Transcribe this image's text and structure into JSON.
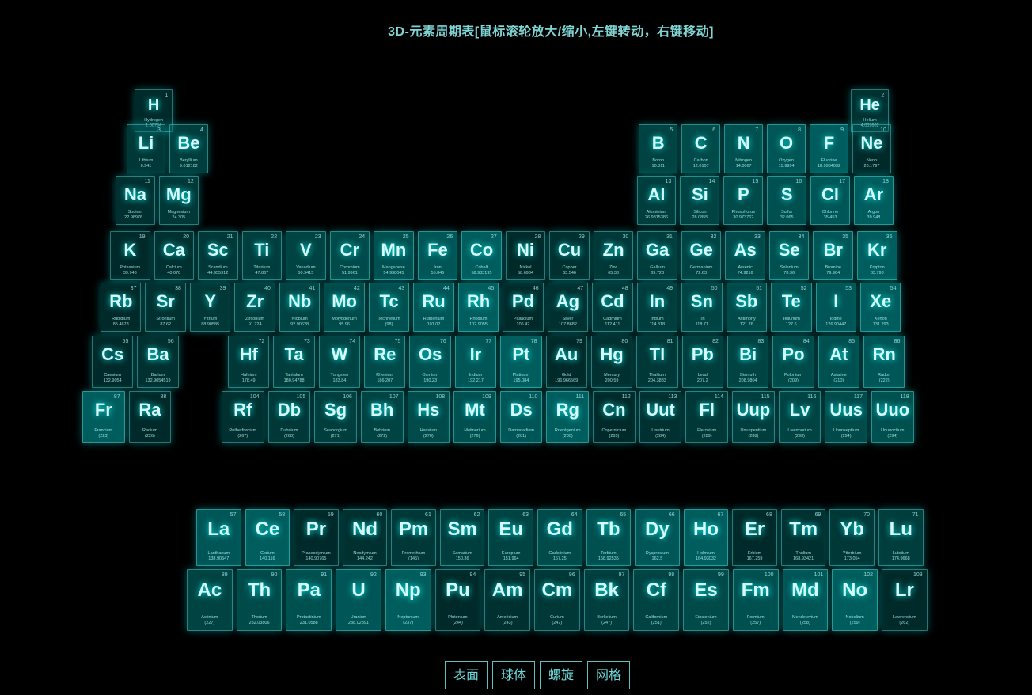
{
  "title": "3D-元素周期表[鼠标滚轮放大/缩小,左键转动，右键移动]",
  "colors": {
    "background": "#000000",
    "accent": "#7fffff",
    "cell_base": "#00bfbf"
  },
  "buttons": [
    {
      "id": "table",
      "label": "表面"
    },
    {
      "id": "sphere",
      "label": "球体"
    },
    {
      "id": "helix",
      "label": "螺旋"
    },
    {
      "id": "grid",
      "label": "网格"
    }
  ],
  "elements": [
    {
      "n": 1,
      "s": "H",
      "name": "Hydrogen",
      "m": "1.00794",
      "col": 1,
      "row": 1
    },
    {
      "n": 2,
      "s": "He",
      "name": "Helium",
      "m": "4.002602",
      "col": 18,
      "row": 1
    },
    {
      "n": 3,
      "s": "Li",
      "name": "Lithium",
      "m": "6.941",
      "col": 1,
      "row": 2
    },
    {
      "n": 4,
      "s": "Be",
      "name": "Beryllium",
      "m": "9.012182",
      "col": 2,
      "row": 2
    },
    {
      "n": 5,
      "s": "B",
      "name": "Boron",
      "m": "10.811",
      "col": 13,
      "row": 2
    },
    {
      "n": 6,
      "s": "C",
      "name": "Carbon",
      "m": "12.0107",
      "col": 14,
      "row": 2
    },
    {
      "n": 7,
      "s": "N",
      "name": "Nitrogen",
      "m": "14.0067",
      "col": 15,
      "row": 2
    },
    {
      "n": 8,
      "s": "O",
      "name": "Oxygen",
      "m": "15.9994",
      "col": 16,
      "row": 2
    },
    {
      "n": 9,
      "s": "F",
      "name": "Fluorine",
      "m": "18.9984032",
      "col": 17,
      "row": 2
    },
    {
      "n": 10,
      "s": "Ne",
      "name": "Neon",
      "m": "20.1797",
      "col": 18,
      "row": 2
    },
    {
      "n": 11,
      "s": "Na",
      "name": "Sodium",
      "m": "22.98976...",
      "col": 1,
      "row": 3
    },
    {
      "n": 12,
      "s": "Mg",
      "name": "Magnesium",
      "m": "24.305",
      "col": 2,
      "row": 3
    },
    {
      "n": 13,
      "s": "Al",
      "name": "Aluminium",
      "m": "26.9815386",
      "col": 13,
      "row": 3
    },
    {
      "n": 14,
      "s": "Si",
      "name": "Silicon",
      "m": "28.0855",
      "col": 14,
      "row": 3
    },
    {
      "n": 15,
      "s": "P",
      "name": "Phosphorus",
      "m": "30.973762",
      "col": 15,
      "row": 3
    },
    {
      "n": 16,
      "s": "S",
      "name": "Sulfur",
      "m": "32.065",
      "col": 16,
      "row": 3
    },
    {
      "n": 17,
      "s": "Cl",
      "name": "Chlorine",
      "m": "35.453",
      "col": 17,
      "row": 3
    },
    {
      "n": 18,
      "s": "Ar",
      "name": "Argon",
      "m": "39.948",
      "col": 18,
      "row": 3
    },
    {
      "n": 19,
      "s": "K",
      "name": "Potassium",
      "m": "39.948",
      "col": 1,
      "row": 4
    },
    {
      "n": 20,
      "s": "Ca",
      "name": "Calcium",
      "m": "40.078",
      "col": 2,
      "row": 4
    },
    {
      "n": 21,
      "s": "Sc",
      "name": "Scandium",
      "m": "44.955912",
      "col": 3,
      "row": 4
    },
    {
      "n": 22,
      "s": "Ti",
      "name": "Titanium",
      "m": "47.867",
      "col": 4,
      "row": 4
    },
    {
      "n": 23,
      "s": "V",
      "name": "Vanadium",
      "m": "50.9415",
      "col": 5,
      "row": 4
    },
    {
      "n": 24,
      "s": "Cr",
      "name": "Chromium",
      "m": "51.9961",
      "col": 6,
      "row": 4
    },
    {
      "n": 25,
      "s": "Mn",
      "name": "Manganese",
      "m": "54.938045",
      "col": 7,
      "row": 4
    },
    {
      "n": 26,
      "s": "Fe",
      "name": "Iron",
      "m": "55.845",
      "col": 8,
      "row": 4
    },
    {
      "n": 27,
      "s": "Co",
      "name": "Cobalt",
      "m": "58.933195",
      "col": 9,
      "row": 4
    },
    {
      "n": 28,
      "s": "Ni",
      "name": "Nickel",
      "m": "58.6934",
      "col": 10,
      "row": 4
    },
    {
      "n": 29,
      "s": "Cu",
      "name": "Copper",
      "m": "63.546",
      "col": 11,
      "row": 4
    },
    {
      "n": 30,
      "s": "Zn",
      "name": "Zinc",
      "m": "65.38",
      "col": 12,
      "row": 4
    },
    {
      "n": 31,
      "s": "Ga",
      "name": "Gallium",
      "m": "69.723",
      "col": 13,
      "row": 4
    },
    {
      "n": 32,
      "s": "Ge",
      "name": "Germanium",
      "m": "72.63",
      "col": 14,
      "row": 4
    },
    {
      "n": 33,
      "s": "As",
      "name": "Arsenic",
      "m": "74.9216",
      "col": 15,
      "row": 4
    },
    {
      "n": 34,
      "s": "Se",
      "name": "Selenium",
      "m": "78.96",
      "col": 16,
      "row": 4
    },
    {
      "n": 35,
      "s": "Br",
      "name": "Bromine",
      "m": "79.904",
      "col": 17,
      "row": 4
    },
    {
      "n": 36,
      "s": "Kr",
      "name": "Krypton",
      "m": "83.798",
      "col": 18,
      "row": 4
    },
    {
      "n": 37,
      "s": "Rb",
      "name": "Rubidium",
      "m": "85.4678",
      "col": 1,
      "row": 5
    },
    {
      "n": 38,
      "s": "Sr",
      "name": "Strontium",
      "m": "87.62",
      "col": 2,
      "row": 5
    },
    {
      "n": 39,
      "s": "Y",
      "name": "Yttrium",
      "m": "88.90585",
      "col": 3,
      "row": 5
    },
    {
      "n": 40,
      "s": "Zr",
      "name": "Zirconium",
      "m": "91.224",
      "col": 4,
      "row": 5
    },
    {
      "n": 41,
      "s": "Nb",
      "name": "Niobium",
      "m": "92.90628",
      "col": 5,
      "row": 5
    },
    {
      "n": 42,
      "s": "Mo",
      "name": "Molybdenum",
      "m": "95.96",
      "col": 6,
      "row": 5
    },
    {
      "n": 43,
      "s": "Tc",
      "name": "Technetium",
      "m": "(98)",
      "col": 7,
      "row": 5
    },
    {
      "n": 44,
      "s": "Ru",
      "name": "Ruthenium",
      "m": "101.07",
      "col": 8,
      "row": 5
    },
    {
      "n": 45,
      "s": "Rh",
      "name": "Rhodium",
      "m": "102.9055",
      "col": 9,
      "row": 5
    },
    {
      "n": 46,
      "s": "Pd",
      "name": "Palladium",
      "m": "106.42",
      "col": 10,
      "row": 5
    },
    {
      "n": 47,
      "s": "Ag",
      "name": "Silver",
      "m": "107.8682",
      "col": 11,
      "row": 5
    },
    {
      "n": 48,
      "s": "Cd",
      "name": "Cadmium",
      "m": "112.411",
      "col": 12,
      "row": 5
    },
    {
      "n": 49,
      "s": "In",
      "name": "Indium",
      "m": "114.818",
      "col": 13,
      "row": 5
    },
    {
      "n": 50,
      "s": "Sn",
      "name": "Tin",
      "m": "118.71",
      "col": 14,
      "row": 5
    },
    {
      "n": 51,
      "s": "Sb",
      "name": "Antimony",
      "m": "121.76",
      "col": 15,
      "row": 5
    },
    {
      "n": 52,
      "s": "Te",
      "name": "Tellurium",
      "m": "127.6",
      "col": 16,
      "row": 5
    },
    {
      "n": 53,
      "s": "I",
      "name": "Iodine",
      "m": "126.90447",
      "col": 17,
      "row": 5
    },
    {
      "n": 54,
      "s": "Xe",
      "name": "Xenon",
      "m": "131.293",
      "col": 18,
      "row": 5
    },
    {
      "n": 55,
      "s": "Cs",
      "name": "Caesium",
      "m": "132.9054",
      "col": 1,
      "row": 6
    },
    {
      "n": 56,
      "s": "Ba",
      "name": "Barium",
      "m": "132.9054519",
      "col": 2,
      "row": 6
    },
    {
      "n": 72,
      "s": "Hf",
      "name": "Hafnium",
      "m": "178.49",
      "col": 4,
      "row": 6
    },
    {
      "n": 73,
      "s": "Ta",
      "name": "Tantalum",
      "m": "180.94788",
      "col": 5,
      "row": 6
    },
    {
      "n": 74,
      "s": "W",
      "name": "Tungsten",
      "m": "183.84",
      "col": 6,
      "row": 6
    },
    {
      "n": 75,
      "s": "Re",
      "name": "Rhenium",
      "m": "186.207",
      "col": 7,
      "row": 6
    },
    {
      "n": 76,
      "s": "Os",
      "name": "Osmium",
      "m": "190.23",
      "col": 8,
      "row": 6
    },
    {
      "n": 77,
      "s": "Ir",
      "name": "Iridium",
      "m": "192.217",
      "col": 9,
      "row": 6
    },
    {
      "n": 78,
      "s": "Pt",
      "name": "Platinum",
      "m": "195.084",
      "col": 10,
      "row": 6
    },
    {
      "n": 79,
      "s": "Au",
      "name": "Gold",
      "m": "196.966569",
      "col": 11,
      "row": 6
    },
    {
      "n": 80,
      "s": "Hg",
      "name": "Mercury",
      "m": "200.59",
      "col": 12,
      "row": 6
    },
    {
      "n": 81,
      "s": "Tl",
      "name": "Thallium",
      "m": "204.3833",
      "col": 13,
      "row": 6
    },
    {
      "n": 82,
      "s": "Pb",
      "name": "Lead",
      "m": "207.2",
      "col": 14,
      "row": 6
    },
    {
      "n": 83,
      "s": "Bi",
      "name": "Bismuth",
      "m": "208.9804",
      "col": 15,
      "row": 6
    },
    {
      "n": 84,
      "s": "Po",
      "name": "Polonium",
      "m": "(209)",
      "col": 16,
      "row": 6
    },
    {
      "n": 85,
      "s": "At",
      "name": "Astatine",
      "m": "(210)",
      "col": 17,
      "row": 6
    },
    {
      "n": 86,
      "s": "Rn",
      "name": "Radon",
      "m": "(222)",
      "col": 18,
      "row": 6
    },
    {
      "n": 87,
      "s": "Fr",
      "name": "Francium",
      "m": "(223)",
      "col": 1,
      "row": 7
    },
    {
      "n": 88,
      "s": "Ra",
      "name": "Radium",
      "m": "(226)",
      "col": 2,
      "row": 7
    },
    {
      "n": 104,
      "s": "Rf",
      "name": "Rutherfordium",
      "m": "(267)",
      "col": 4,
      "row": 7
    },
    {
      "n": 105,
      "s": "Db",
      "name": "Dubnium",
      "m": "(268)",
      "col": 5,
      "row": 7
    },
    {
      "n": 106,
      "s": "Sg",
      "name": "Seaborgium",
      "m": "(271)",
      "col": 6,
      "row": 7
    },
    {
      "n": 107,
      "s": "Bh",
      "name": "Bohrium",
      "m": "(272)",
      "col": 7,
      "row": 7
    },
    {
      "n": 108,
      "s": "Hs",
      "name": "Hassium",
      "m": "(270)",
      "col": 8,
      "row": 7
    },
    {
      "n": 109,
      "s": "Mt",
      "name": "Meitnerium",
      "m": "(276)",
      "col": 9,
      "row": 7
    },
    {
      "n": 110,
      "s": "Ds",
      "name": "Darmstadium",
      "m": "(281)",
      "col": 10,
      "row": 7
    },
    {
      "n": 111,
      "s": "Rg",
      "name": "Roentgenium",
      "m": "(280)",
      "col": 11,
      "row": 7
    },
    {
      "n": 112,
      "s": "Cn",
      "name": "Copernicium",
      "m": "(285)",
      "col": 12,
      "row": 7
    },
    {
      "n": 113,
      "s": "Uut",
      "name": "Unutrium",
      "m": "(284)",
      "col": 13,
      "row": 7
    },
    {
      "n": 114,
      "s": "Fl",
      "name": "Flerovium",
      "m": "(289)",
      "col": 14,
      "row": 7
    },
    {
      "n": 115,
      "s": "Uup",
      "name": "Ununpentium",
      "m": "(288)",
      "col": 15,
      "row": 7
    },
    {
      "n": 116,
      "s": "Lv",
      "name": "Livermorium",
      "m": "(293)",
      "col": 16,
      "row": 7
    },
    {
      "n": 117,
      "s": "Uus",
      "name": "Ununseptium",
      "m": "(294)",
      "col": 17,
      "row": 7
    },
    {
      "n": 118,
      "s": "Uuo",
      "name": "Ununoctium",
      "m": "(294)",
      "col": 18,
      "row": 7
    },
    {
      "n": 57,
      "s": "La",
      "name": "Lanthanum",
      "m": "138.90547",
      "col": 4,
      "row": 9
    },
    {
      "n": 58,
      "s": "Ce",
      "name": "Cerium",
      "m": "140.116",
      "col": 5,
      "row": 9
    },
    {
      "n": 59,
      "s": "Pr",
      "name": "Praseodymium",
      "m": "140.90765",
      "col": 6,
      "row": 9
    },
    {
      "n": 60,
      "s": "Nd",
      "name": "Neodymium",
      "m": "144.242",
      "col": 7,
      "row": 9
    },
    {
      "n": 61,
      "s": "Pm",
      "name": "Promethium",
      "m": "(145)",
      "col": 8,
      "row": 9
    },
    {
      "n": 62,
      "s": "Sm",
      "name": "Samarium",
      "m": "150.36",
      "col": 9,
      "row": 9
    },
    {
      "n": 63,
      "s": "Eu",
      "name": "Europium",
      "m": "151.964",
      "col": 10,
      "row": 9
    },
    {
      "n": 64,
      "s": "Gd",
      "name": "Gadolinium",
      "m": "157.25",
      "col": 11,
      "row": 9
    },
    {
      "n": 65,
      "s": "Tb",
      "name": "Terbium",
      "m": "158.92535",
      "col": 12,
      "row": 9
    },
    {
      "n": 66,
      "s": "Dy",
      "name": "Dysprosium",
      "m": "162.5",
      "col": 13,
      "row": 9
    },
    {
      "n": 67,
      "s": "Ho",
      "name": "Holmium",
      "m": "164.93032",
      "col": 14,
      "row": 9
    },
    {
      "n": 68,
      "s": "Er",
      "name": "Erbium",
      "m": "167.259",
      "col": 15,
      "row": 9
    },
    {
      "n": 69,
      "s": "Tm",
      "name": "Thulium",
      "m": "168.93421",
      "col": 16,
      "row": 9
    },
    {
      "n": 70,
      "s": "Yb",
      "name": "Ytterbium",
      "m": "173.054",
      "col": 17,
      "row": 9
    },
    {
      "n": 71,
      "s": "Lu",
      "name": "Lutetium",
      "m": "174.9668",
      "col": 18,
      "row": 9
    },
    {
      "n": 89,
      "s": "Ac",
      "name": "Actinium",
      "m": "(227)",
      "col": 4,
      "row": 10
    },
    {
      "n": 90,
      "s": "Th",
      "name": "Thorium",
      "m": "232.03806",
      "col": 5,
      "row": 10
    },
    {
      "n": 91,
      "s": "Pa",
      "name": "Protactinium",
      "m": "231.0588",
      "col": 6,
      "row": 10
    },
    {
      "n": 92,
      "s": "U",
      "name": "Uranium",
      "m": "238.02891",
      "col": 7,
      "row": 10
    },
    {
      "n": 93,
      "s": "Np",
      "name": "Neptunium",
      "m": "(237)",
      "col": 8,
      "row": 10
    },
    {
      "n": 94,
      "s": "Pu",
      "name": "Plutonium",
      "m": "(244)",
      "col": 9,
      "row": 10
    },
    {
      "n": 95,
      "s": "Am",
      "name": "Americium",
      "m": "(243)",
      "col": 10,
      "row": 10
    },
    {
      "n": 96,
      "s": "Cm",
      "name": "Curium",
      "m": "(247)",
      "col": 11,
      "row": 10
    },
    {
      "n": 97,
      "s": "Bk",
      "name": "Berkelium",
      "m": "(247)",
      "col": 12,
      "row": 10
    },
    {
      "n": 98,
      "s": "Cf",
      "name": "Californium",
      "m": "(251)",
      "col": 13,
      "row": 10
    },
    {
      "n": 99,
      "s": "Es",
      "name": "Einstenium",
      "m": "(252)",
      "col": 14,
      "row": 10
    },
    {
      "n": 100,
      "s": "Fm",
      "name": "Fermium",
      "m": "(257)",
      "col": 15,
      "row": 10
    },
    {
      "n": 101,
      "s": "Md",
      "name": "Mendelevium",
      "m": "(258)",
      "col": 16,
      "row": 10
    },
    {
      "n": 102,
      "s": "No",
      "name": "Nobelium",
      "m": "(259)",
      "col": 17,
      "row": 10
    },
    {
      "n": 103,
      "s": "Lr",
      "name": "Lawrencium",
      "m": "(262)",
      "col": 18,
      "row": 10
    }
  ]
}
